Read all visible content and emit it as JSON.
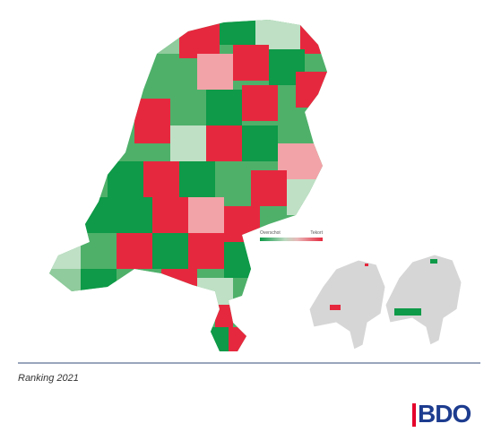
{
  "map": {
    "title": "",
    "legend": {
      "left_label": "Overschot",
      "right_label": "Tekort",
      "low_color": "#0e9a48",
      "high_color": "#e6283e"
    }
  },
  "caption": "Ranking 2021",
  "logo": {
    "text": "BDO",
    "brand_color": "#1d3c8f",
    "accent_color": "#e4002b"
  }
}
